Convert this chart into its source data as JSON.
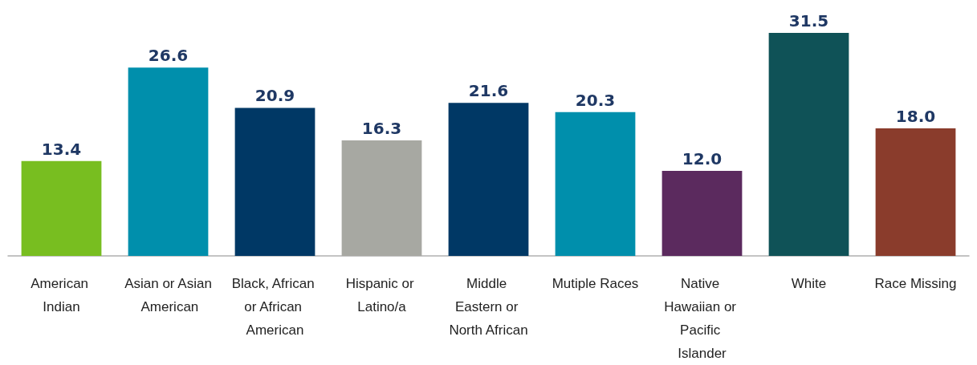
{
  "chart_data": {
    "type": "bar",
    "categories": [
      "American Indian",
      "Asian or Asian American",
      "Black, African or African American",
      "Hispanic or Latino/a",
      "Middle Eastern or North African",
      "Mutiple Races",
      "Native Hawaiian or Pacific Islander",
      "White",
      "Race Missing"
    ],
    "values": [
      13.4,
      26.6,
      20.9,
      16.3,
      21.6,
      20.3,
      12.0,
      31.5,
      18.0
    ],
    "colors": [
      "#78be20",
      "#008fac",
      "#003865",
      "#a7a8a2",
      "#003865",
      "#008fac",
      "#5b2a5e",
      "#0f5257",
      "#8a3c2c"
    ],
    "value_labels": [
      "13.4",
      "26.6",
      "20.9",
      "16.3",
      "21.6",
      "20.3",
      "12.0",
      "31.5",
      "18.0"
    ]
  }
}
